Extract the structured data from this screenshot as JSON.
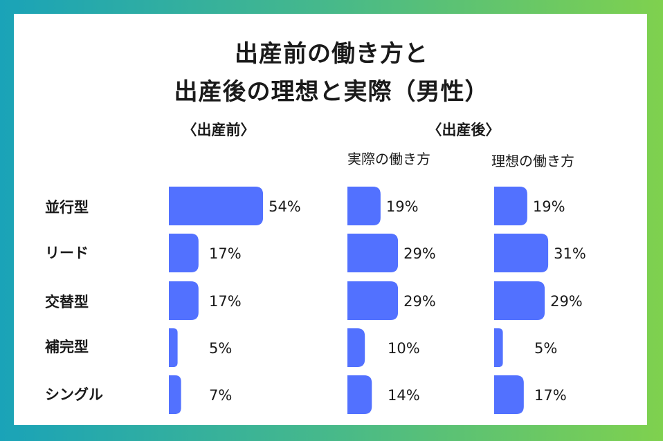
{
  "title_lines": [
    "出産前の働き方と",
    "出産後の理想と実際（男性）"
  ],
  "groups": [
    "〈出産前〉",
    "〈出産後〉"
  ],
  "subheads": [
    "実際の働き方",
    "理想の働き方"
  ],
  "colors": {
    "bar": "#5271ff",
    "text": "#1a1a1a"
  },
  "chart_data": {
    "type": "bar",
    "orientation": "horizontal",
    "categories": [
      "並行型",
      "リード",
      "交替型",
      "補完型",
      "シングル"
    ],
    "series": [
      {
        "name": "〈出産前〉",
        "values": [
          54,
          17,
          17,
          5,
          7
        ]
      },
      {
        "name": "実際の働き方",
        "values": [
          19,
          29,
          29,
          10,
          14
        ]
      },
      {
        "name": "理想の働き方",
        "values": [
          19,
          31,
          29,
          5,
          17
        ]
      }
    ],
    "unit": "%"
  }
}
